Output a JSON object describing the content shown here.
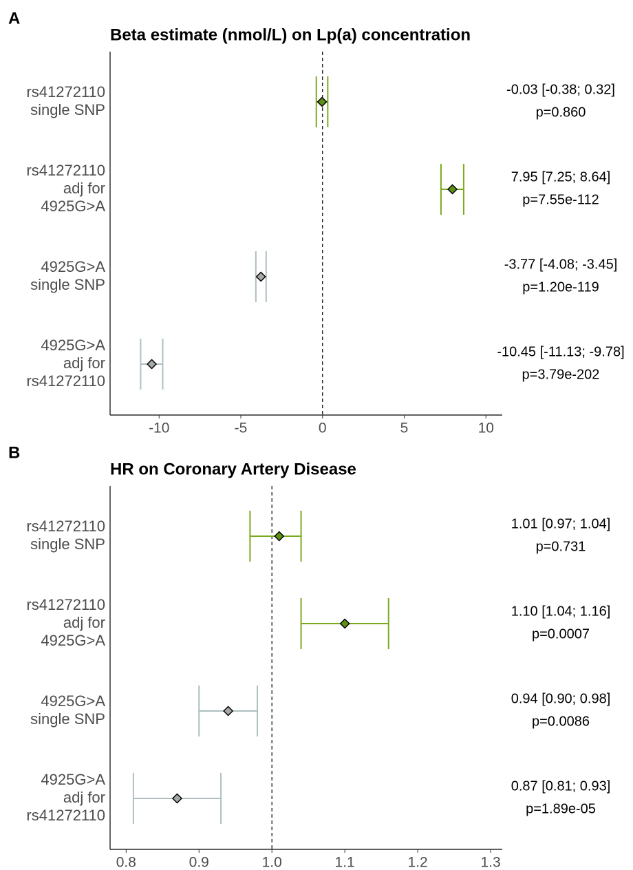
{
  "chart_data": [
    {
      "type": "forest",
      "panel_label": "A",
      "title": "Beta estimate (nmol/L) on Lp(a) concentration",
      "categories": [
        [
          "rs41272110",
          "single SNP"
        ],
        [
          "rs41272110",
          "adj for",
          "4925G>A"
        ],
        [
          "4925G>A",
          "single SNP"
        ],
        [
          "4925G>A",
          "adj for",
          "rs41272110"
        ]
      ],
      "values": [
        -0.03,
        7.95,
        -3.77,
        -10.45
      ],
      "lower": [
        -0.38,
        7.25,
        -4.08,
        -11.13
      ],
      "upper": [
        0.32,
        8.64,
        -3.45,
        -9.78
      ],
      "value_labels": [
        "-0.03 [-0.38; 0.32]",
        "7.95 [7.25; 8.64]",
        "-3.77 [-4.08; -3.45]",
        "-10.45 [-11.13; -9.78]"
      ],
      "p_labels": [
        "p=0.860",
        "p=7.55e-112",
        "p=1.20e-119",
        "p=3.79e-202"
      ],
      "colors": [
        "#7aab1e",
        "#7aab1e",
        "#aebfc2",
        "#aebfc2"
      ],
      "marker_colors": [
        "#5f8f17",
        "#5f8f17",
        "#a8a8a8",
        "#a8a8a8"
      ],
      "ref": 0,
      "xlim": [
        -13,
        11
      ],
      "xticks": [
        -10,
        -5,
        0,
        5,
        10
      ]
    },
    {
      "type": "forest",
      "panel_label": "B",
      "title": "HR on Coronary Artery Disease",
      "categories": [
        [
          "rs41272110",
          "single SNP"
        ],
        [
          "rs41272110",
          "adj for",
          "4925G>A"
        ],
        [
          "4925G>A",
          "single SNP"
        ],
        [
          "4925G>A",
          "adj for",
          "rs41272110"
        ]
      ],
      "values": [
        1.01,
        1.1,
        0.94,
        0.87
      ],
      "lower": [
        0.97,
        1.04,
        0.9,
        0.81
      ],
      "upper": [
        1.04,
        1.16,
        0.98,
        0.93
      ],
      "value_labels": [
        "1.01 [0.97; 1.04]",
        "1.10 [1.04; 1.16]",
        "0.94 [0.90; 0.98]",
        "0.87 [0.81; 0.93]"
      ],
      "p_labels": [
        "p=0.731",
        "p=0.0007",
        "p=0.0086",
        "p=1.89e-05"
      ],
      "colors": [
        "#7aab1e",
        "#7aab1e",
        "#aebfc2",
        "#aebfc2"
      ],
      "marker_colors": [
        "#5f8f17",
        "#5f8f17",
        "#a8a8a8",
        "#a8a8a8"
      ],
      "ref": {
        "value": 1,
        "label": "1.0"
      },
      "xlim": [
        0.778,
        1.316
      ],
      "xticks": [
        0.8,
        0.9,
        {
          "value": 1,
          "label": "1.0"
        },
        1.1,
        1.2,
        1.3
      ]
    }
  ]
}
